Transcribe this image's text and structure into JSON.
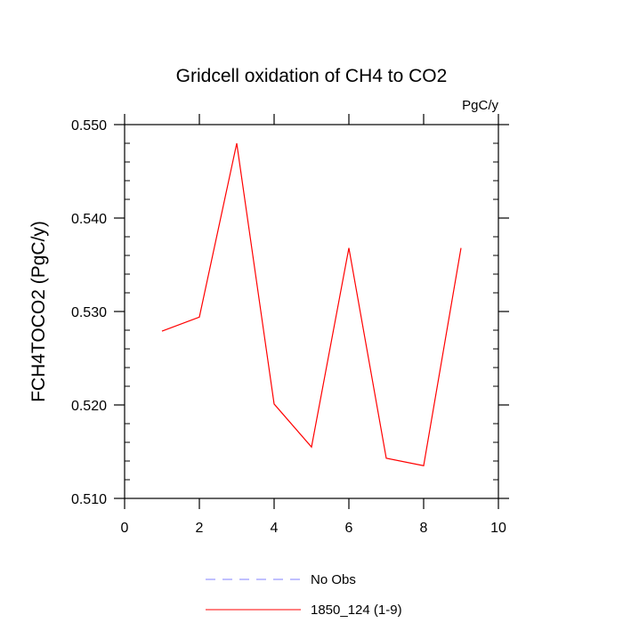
{
  "chart_data": {
    "type": "line",
    "title": "Gridcell oxidation of CH4 to CO2",
    "units": "PgC/y",
    "xlabel": "",
    "ylabel": "FCH4TOCO2  (PgC/y)",
    "xlim": [
      0,
      10
    ],
    "ylim": [
      0.51,
      0.55
    ],
    "x_ticks": [
      0,
      2,
      4,
      6,
      8,
      10
    ],
    "x_tick_labels": [
      "0",
      "2",
      "4",
      "6",
      "8",
      "10"
    ],
    "y_ticks": [
      0.51,
      0.52,
      0.53,
      0.54,
      0.55
    ],
    "y_tick_labels": [
      "0.510",
      "0.520",
      "0.530",
      "0.540",
      "0.550"
    ],
    "grid": false,
    "legend_position": "bottom-center",
    "series": [
      {
        "name": "No Obs",
        "color": "#8080ff",
        "style": "dashed",
        "x": [],
        "values": []
      },
      {
        "name": "1850_124 (1-9)",
        "color": "#ff0000",
        "style": "solid",
        "x": [
          1,
          2,
          3,
          4,
          5,
          6,
          7,
          8,
          9
        ],
        "values": [
          0.5279,
          0.5294,
          0.548,
          0.5201,
          0.5155,
          0.5368,
          0.5143,
          0.5135,
          0.5368
        ]
      }
    ]
  }
}
